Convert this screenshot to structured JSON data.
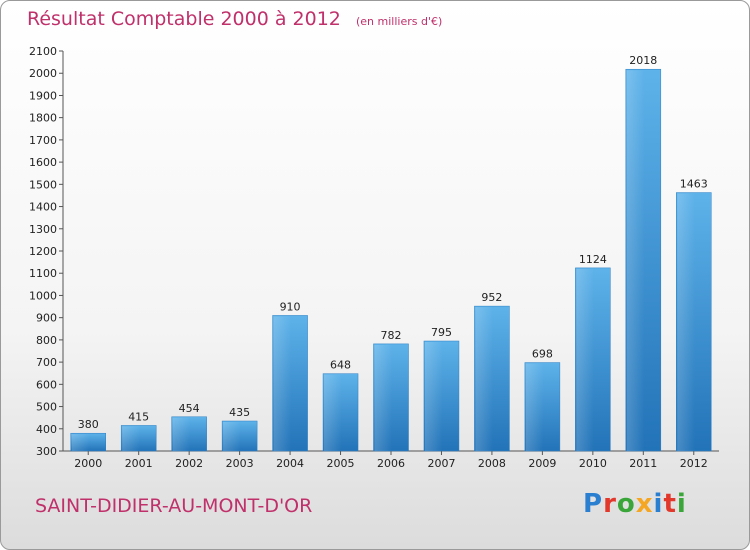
{
  "chart_data": {
    "type": "bar",
    "title": "Résultat Comptable 2000 à 2012",
    "unit_label": "(en milliers d'€)",
    "categories": [
      "2000",
      "2001",
      "2002",
      "2003",
      "2004",
      "2005",
      "2006",
      "2007",
      "2008",
      "2009",
      "2010",
      "2011",
      "2012"
    ],
    "values": [
      380,
      415,
      454,
      435,
      910,
      648,
      782,
      795,
      952,
      698,
      1124,
      2018,
      1463
    ],
    "yticks": [
      300,
      400,
      500,
      600,
      700,
      800,
      900,
      1000,
      1100,
      1200,
      1300,
      1400,
      1500,
      1600,
      1700,
      1800,
      1900,
      2000,
      2100
    ],
    "ylim": [
      300,
      2100
    ],
    "xlabel": "",
    "ylabel": "",
    "grid": false,
    "bar_color": "#3f97d8"
  },
  "footer": {
    "city": "SAINT-DIDIER-AU-MONT-D'OR",
    "logo": "Proxiti",
    "logo_colors": [
      "#2b7fd0",
      "#e2372b",
      "#3aa63a",
      "#f5a623",
      "#2b7fd0",
      "#e2372b",
      "#3aa63a"
    ]
  }
}
